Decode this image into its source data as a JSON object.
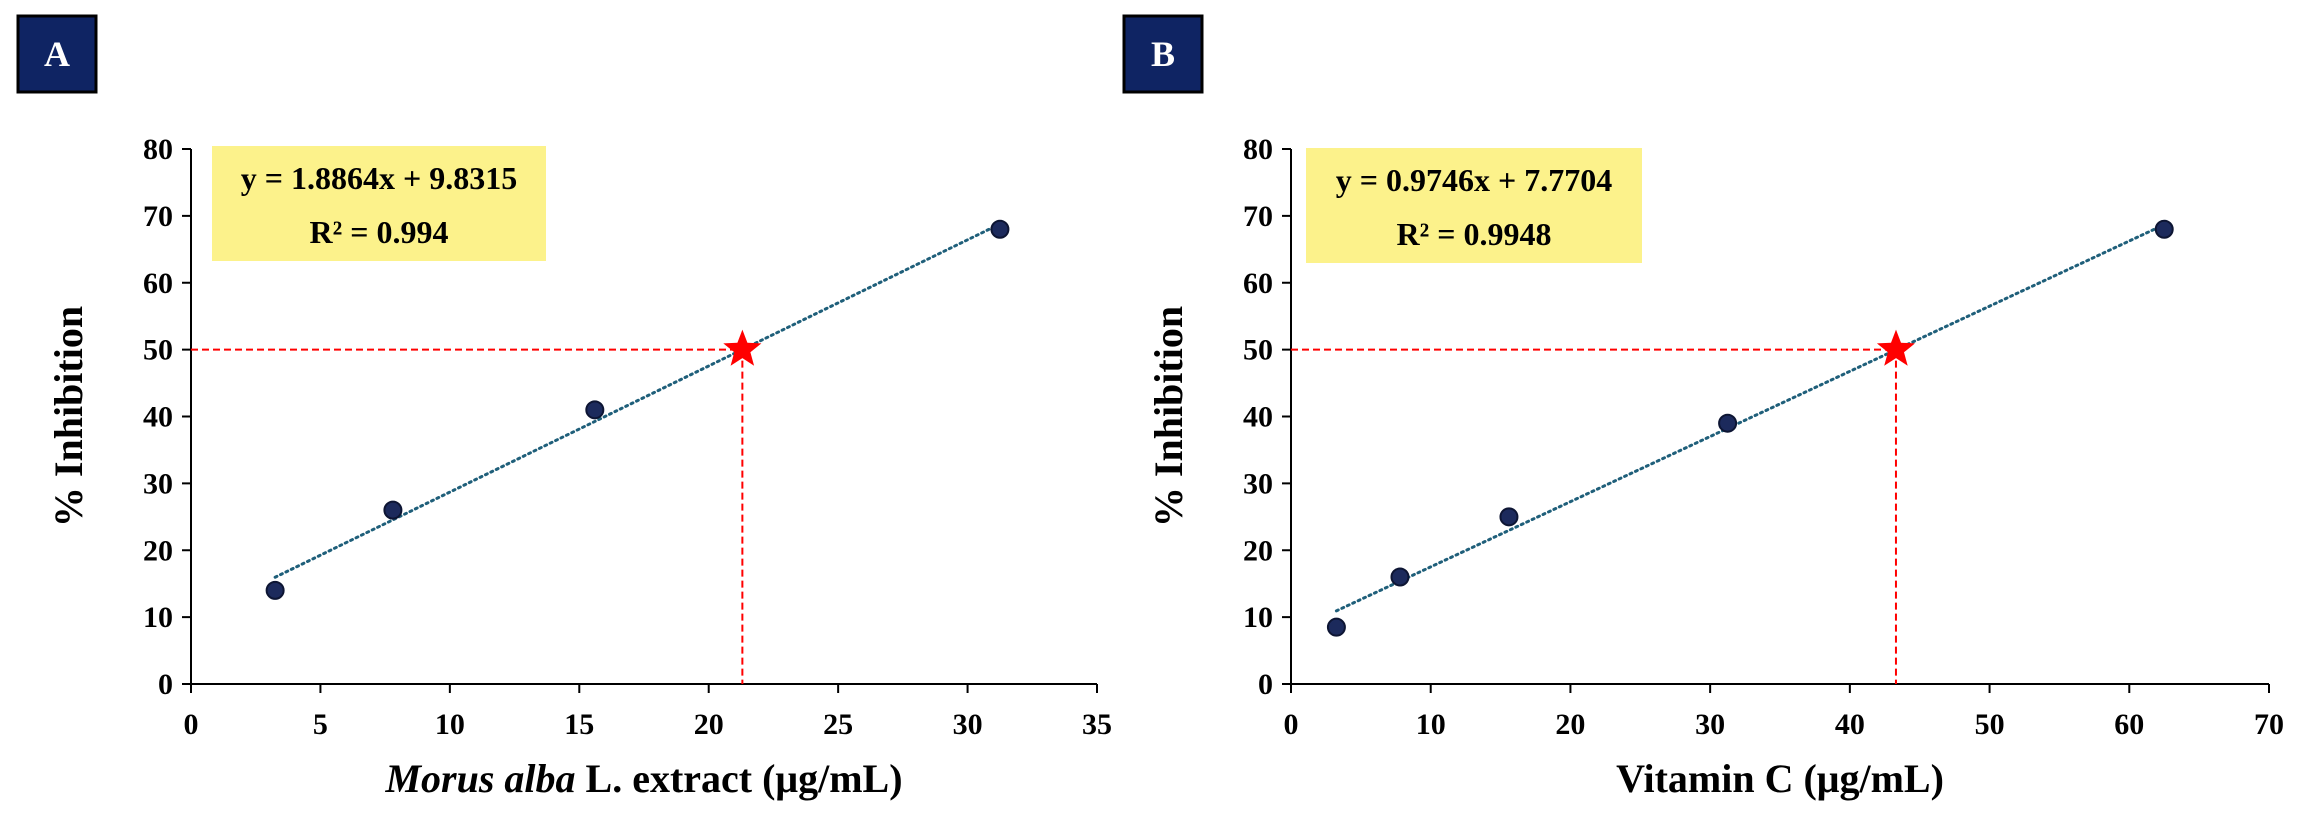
{
  "chart_data": [
    {
      "panel_label": "A",
      "type": "scatter",
      "xlabel_italic": "Morus alba",
      "xlabel_rest": " L. extract (μg/mL)",
      "ylabel": "% Inhibition",
      "xlim": [
        0,
        35
      ],
      "ylim": [
        0,
        80
      ],
      "xticks": [
        "0",
        "5",
        "10",
        "15",
        "20",
        "25",
        "30",
        "35"
      ],
      "yticks": [
        "0",
        "10",
        "20",
        "30",
        "40",
        "50",
        "60",
        "70",
        "80"
      ],
      "series": [
        {
          "x": [
            3.25,
            7.8,
            15.6,
            31.25
          ],
          "y": [
            14,
            26,
            41,
            68
          ]
        }
      ],
      "trendline": {
        "slope": 1.8864,
        "intercept": 9.8315,
        "x_range": [
          3.25,
          31.25
        ]
      },
      "equation": "y = 1.8864x + 9.8315",
      "r2": "R² = 0.994",
      "ic50": {
        "x": 21.3,
        "y": 50
      },
      "grid": false
    },
    {
      "panel_label": "B",
      "type": "scatter",
      "xlabel_italic": "",
      "xlabel_rest": "Vitamin C (μg/mL)",
      "ylabel": "% Inhibition",
      "xlim": [
        0,
        70
      ],
      "ylim": [
        0,
        80
      ],
      "xticks": [
        "0",
        "10",
        "20",
        "30",
        "40",
        "50",
        "60",
        "70"
      ],
      "yticks": [
        "0",
        "10",
        "20",
        "30",
        "40",
        "50",
        "60",
        "70",
        "80"
      ],
      "series": [
        {
          "x": [
            3.25,
            7.8,
            15.6,
            31.25,
            62.5
          ],
          "y": [
            8.5,
            16,
            25,
            39,
            68
          ]
        }
      ],
      "trendline": {
        "slope": 0.9746,
        "intercept": 7.7704,
        "x_range": [
          3.25,
          62.5
        ]
      },
      "equation": "y = 0.9746x + 7.7704",
      "r2": "R² = 0.9948",
      "ic50": {
        "x": 43.3,
        "y": 50
      },
      "grid": false
    }
  ],
  "colors": {
    "marker_fill": "#1c2a5c",
    "marker_stroke": "#0d1533",
    "trendline": "#1f5f7a",
    "ic50_line": "#ff0000",
    "star": "#ff0000",
    "equation_box": "#fcf28b",
    "panel_label_bg": "#0f2463",
    "panel_label_border": "#000000",
    "axis": "#000000"
  }
}
